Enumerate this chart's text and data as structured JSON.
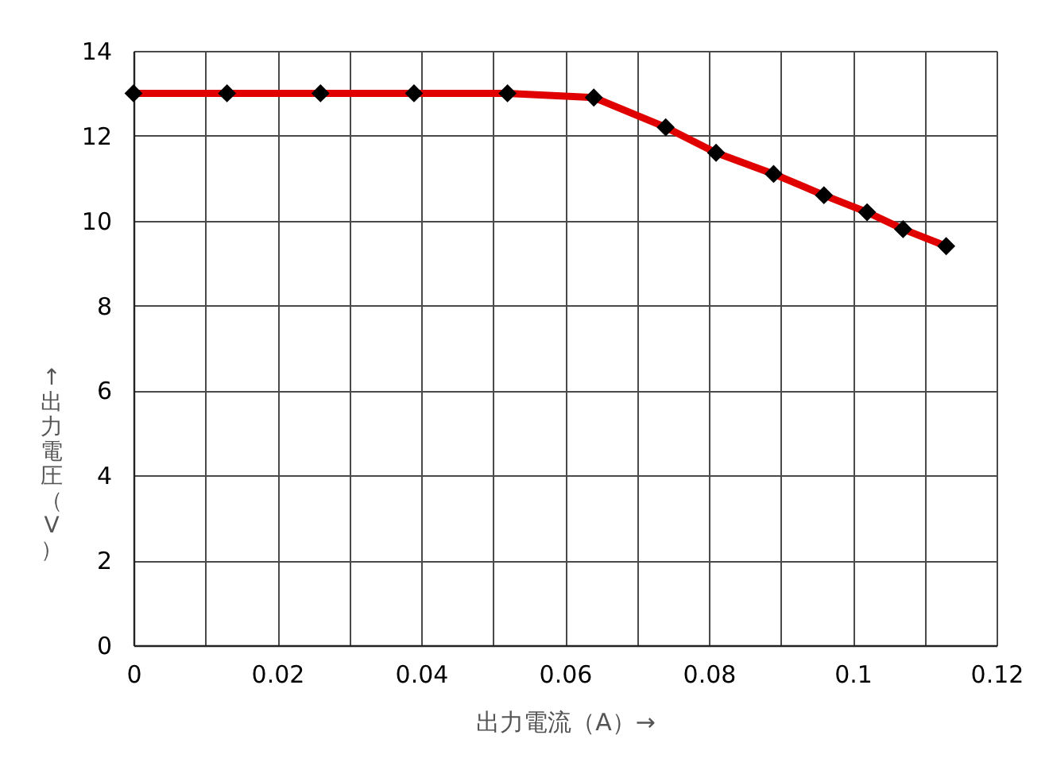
{
  "chart_data": {
    "type": "line",
    "xlabel": "出力電流（A）→",
    "ylabel": "↑出力電圧（V）",
    "x": [
      0,
      0.013,
      0.026,
      0.039,
      0.052,
      0.064,
      0.074,
      0.081,
      0.089,
      0.096,
      0.102,
      0.107,
      0.113
    ],
    "series": [
      {
        "color": "#e00000",
        "values": [
          13,
          13,
          13,
          13,
          13,
          12.9,
          12.2,
          11.6,
          11.1,
          10.6,
          10.2,
          9.8,
          9.4
        ]
      }
    ],
    "xlim": [
      0,
      0.12
    ],
    "ylim": [
      0,
      14
    ],
    "xticks": [
      0,
      {
        "value": 0.01,
        "label": null
      },
      0.02,
      {
        "value": 0.03,
        "label": null
      },
      0.04,
      {
        "value": 0.05,
        "label": null
      },
      0.06,
      {
        "value": 0.07,
        "label": null
      },
      0.08,
      {
        "value": 0.09,
        "label": null
      },
      0.1,
      {
        "value": 0.11,
        "label": null
      },
      0.12
    ],
    "yticks": [
      0,
      2,
      4,
      6,
      8,
      10,
      12,
      14
    ],
    "grid": true,
    "legend": false,
    "marker": "diamond",
    "line_style": "solid"
  }
}
